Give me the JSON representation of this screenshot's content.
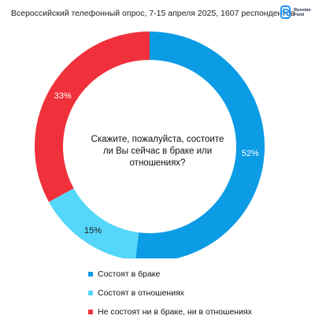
{
  "header": {
    "title": "Всероссийский телефонный опрос, 7-15 апреля 2025, 1607 респондентов",
    "logo_text": "Russian\nField"
  },
  "chart_data": {
    "type": "pie",
    "donut": true,
    "title": "Скажите, пожалуйста, состоите ли Вы сейчас в браке или отношениях?",
    "legend_position": "bottom",
    "categories": [
      "Состоят в браке",
      "Состоят в отношениях",
      "Не состоят ни в браке, ни в отношениях"
    ],
    "values": [
      52,
      15,
      33
    ],
    "labels": [
      "52%",
      "15%",
      "33%"
    ],
    "colors": [
      "#0b9ce5",
      "#55d6fb",
      "#f0303a"
    ]
  }
}
